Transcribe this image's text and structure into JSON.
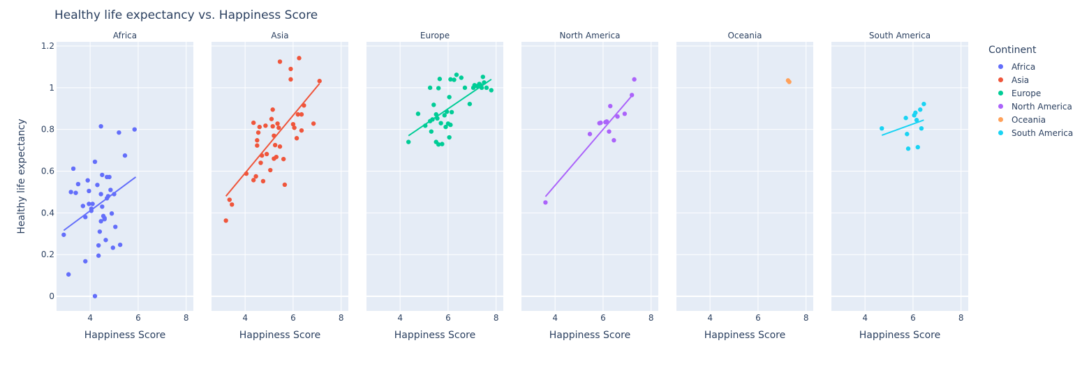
{
  "chart_data": {
    "type": "scatter",
    "title": "Healthy life expectancy vs. Happiness Score",
    "ylabel": "Healthy life expectancy",
    "xlabel": "Happiness Score",
    "xlim": [
      2.6,
      8.3
    ],
    "ylim": [
      -0.07,
      1.22
    ],
    "xticks": [
      4,
      6,
      8
    ],
    "yticks": [
      0,
      0.2,
      0.4,
      0.6,
      0.8,
      1,
      1.2
    ],
    "ytick_labels": [
      "0",
      "0.2",
      "0.4",
      "0.6",
      "0.8",
      "1",
      "1.2"
    ],
    "legend_title": "Continent",
    "legend_position": "right",
    "grid": true,
    "trendline": "ols",
    "panels": [
      {
        "name": "Africa",
        "color": "#636efa",
        "trend": [
          [
            2.9,
            0.316
          ],
          [
            5.9,
            0.572
          ]
        ],
        "points": [
          [
            2.9,
            0.295
          ],
          [
            3.1,
            0.105
          ],
          [
            3.2,
            0.5
          ],
          [
            3.3,
            0.612
          ],
          [
            3.4,
            0.496
          ],
          [
            3.5,
            0.538
          ],
          [
            3.7,
            0.433
          ],
          [
            3.8,
            0.38
          ],
          [
            3.8,
            0.168
          ],
          [
            3.9,
            0.556
          ],
          [
            3.95,
            0.505
          ],
          [
            3.95,
            0.443
          ],
          [
            4.05,
            0.42
          ],
          [
            4.05,
            0.41
          ],
          [
            4.1,
            0.443
          ],
          [
            4.2,
            0.645
          ],
          [
            4.2,
            0.001
          ],
          [
            4.3,
            0.534
          ],
          [
            4.35,
            0.195
          ],
          [
            4.35,
            0.244
          ],
          [
            4.4,
            0.31
          ],
          [
            4.45,
            0.815
          ],
          [
            4.45,
            0.49
          ],
          [
            4.45,
            0.36
          ],
          [
            4.5,
            0.582
          ],
          [
            4.5,
            0.43
          ],
          [
            4.55,
            0.385
          ],
          [
            4.6,
            0.37
          ],
          [
            4.6,
            0.375
          ],
          [
            4.65,
            0.27
          ],
          [
            4.7,
            0.572
          ],
          [
            4.7,
            0.47
          ],
          [
            4.75,
            0.48
          ],
          [
            4.8,
            0.572
          ],
          [
            4.85,
            0.51
          ],
          [
            4.9,
            0.397
          ],
          [
            4.95,
            0.233
          ],
          [
            5.0,
            0.49
          ],
          [
            5.05,
            0.333
          ],
          [
            5.2,
            0.785
          ],
          [
            5.25,
            0.247
          ],
          [
            5.45,
            0.675
          ],
          [
            5.85,
            0.8
          ]
        ]
      },
      {
        "name": "Asia",
        "color": "#ef553b",
        "trend": [
          [
            3.2,
            0.48
          ],
          [
            7.1,
            1.02
          ]
        ],
        "points": [
          [
            3.2,
            0.363
          ],
          [
            3.35,
            0.463
          ],
          [
            3.45,
            0.44
          ],
          [
            4.05,
            0.588
          ],
          [
            4.35,
            0.557
          ],
          [
            4.35,
            0.832
          ],
          [
            4.45,
            0.575
          ],
          [
            4.5,
            0.748
          ],
          [
            4.5,
            0.723
          ],
          [
            4.55,
            0.785
          ],
          [
            4.6,
            0.812
          ],
          [
            4.65,
            0.64
          ],
          [
            4.7,
            0.675
          ],
          [
            4.75,
            0.552
          ],
          [
            4.85,
            0.818
          ],
          [
            4.9,
            0.682
          ],
          [
            5.05,
            0.605
          ],
          [
            5.1,
            0.85
          ],
          [
            5.15,
            0.895
          ],
          [
            5.15,
            0.815
          ],
          [
            5.2,
            0.77
          ],
          [
            5.2,
            0.66
          ],
          [
            5.25,
            0.725
          ],
          [
            5.3,
            0.668
          ],
          [
            5.35,
            0.828
          ],
          [
            5.4,
            0.808
          ],
          [
            5.45,
            1.125
          ],
          [
            5.45,
            0.718
          ],
          [
            5.6,
            0.658
          ],
          [
            5.65,
            0.535
          ],
          [
            5.9,
            1.09
          ],
          [
            5.9,
            1.04
          ],
          [
            6.0,
            0.825
          ],
          [
            6.05,
            0.808
          ],
          [
            6.15,
            0.758
          ],
          [
            6.2,
            0.872
          ],
          [
            6.25,
            1.142
          ],
          [
            6.35,
            0.872
          ],
          [
            6.35,
            0.795
          ],
          [
            6.45,
            0.915
          ],
          [
            6.85,
            0.828
          ],
          [
            7.1,
            1.032
          ]
        ]
      },
      {
        "name": "Europe",
        "color": "#00cc96",
        "trend": [
          [
            4.35,
            0.77
          ],
          [
            7.8,
            1.04
          ]
        ],
        "points": [
          [
            4.35,
            0.74
          ],
          [
            4.75,
            0.875
          ],
          [
            5.05,
            0.818
          ],
          [
            5.25,
            0.84
          ],
          [
            5.25,
            1.0
          ],
          [
            5.3,
            0.79
          ],
          [
            5.35,
            0.848
          ],
          [
            5.4,
            0.918
          ],
          [
            5.5,
            0.872
          ],
          [
            5.5,
            0.74
          ],
          [
            5.55,
            0.853
          ],
          [
            5.6,
            0.728
          ],
          [
            5.6,
            0.998
          ],
          [
            5.65,
            1.042
          ],
          [
            5.7,
            0.83
          ],
          [
            5.75,
            0.73
          ],
          [
            5.85,
            0.868
          ],
          [
            5.9,
            0.812
          ],
          [
            5.95,
            0.885
          ],
          [
            6.0,
            0.828
          ],
          [
            6.05,
            0.762
          ],
          [
            6.05,
            0.955
          ],
          [
            6.1,
            1.04
          ],
          [
            6.1,
            0.822
          ],
          [
            6.15,
            0.883
          ],
          [
            6.25,
            1.038
          ],
          [
            6.35,
            1.062
          ],
          [
            6.55,
            1.048
          ],
          [
            6.7,
            1.0
          ],
          [
            6.9,
            0.922
          ],
          [
            7.05,
            1.0
          ],
          [
            7.1,
            1.012
          ],
          [
            7.2,
            1.008
          ],
          [
            7.3,
            1.018
          ],
          [
            7.35,
            1.012
          ],
          [
            7.4,
            1.0
          ],
          [
            7.45,
            1.052
          ],
          [
            7.5,
            1.025
          ],
          [
            7.6,
            1.0
          ],
          [
            7.8,
            0.988
          ]
        ]
      },
      {
        "name": "North America",
        "color": "#ab63fa",
        "trend": [
          [
            3.6,
            0.478
          ],
          [
            7.25,
            0.968
          ]
        ],
        "points": [
          [
            3.6,
            0.45
          ],
          [
            5.45,
            0.778
          ],
          [
            5.85,
            0.83
          ],
          [
            5.9,
            0.832
          ],
          [
            6.1,
            0.835
          ],
          [
            6.15,
            0.838
          ],
          [
            6.25,
            0.79
          ],
          [
            6.3,
            0.912
          ],
          [
            6.45,
            0.748
          ],
          [
            6.6,
            0.862
          ],
          [
            6.9,
            0.875
          ],
          [
            7.2,
            0.965
          ],
          [
            7.3,
            1.04
          ]
        ]
      },
      {
        "name": "Oceania",
        "color": "#ffa15a",
        "trend": [
          [
            7.25,
            1.035
          ],
          [
            7.3,
            1.028
          ]
        ],
        "points": [
          [
            7.25,
            1.035
          ],
          [
            7.3,
            1.028
          ]
        ]
      },
      {
        "name": "South America",
        "color": "#19d3f3",
        "trend": [
          [
            4.7,
            0.772
          ],
          [
            6.45,
            0.845
          ]
        ],
        "points": [
          [
            4.7,
            0.805
          ],
          [
            5.7,
            0.855
          ],
          [
            5.75,
            0.778
          ],
          [
            5.8,
            0.708
          ],
          [
            6.05,
            0.868
          ],
          [
            6.1,
            0.88
          ],
          [
            6.15,
            0.845
          ],
          [
            6.2,
            0.715
          ],
          [
            6.3,
            0.895
          ],
          [
            6.35,
            0.805
          ],
          [
            6.45,
            0.922
          ]
        ]
      }
    ]
  }
}
